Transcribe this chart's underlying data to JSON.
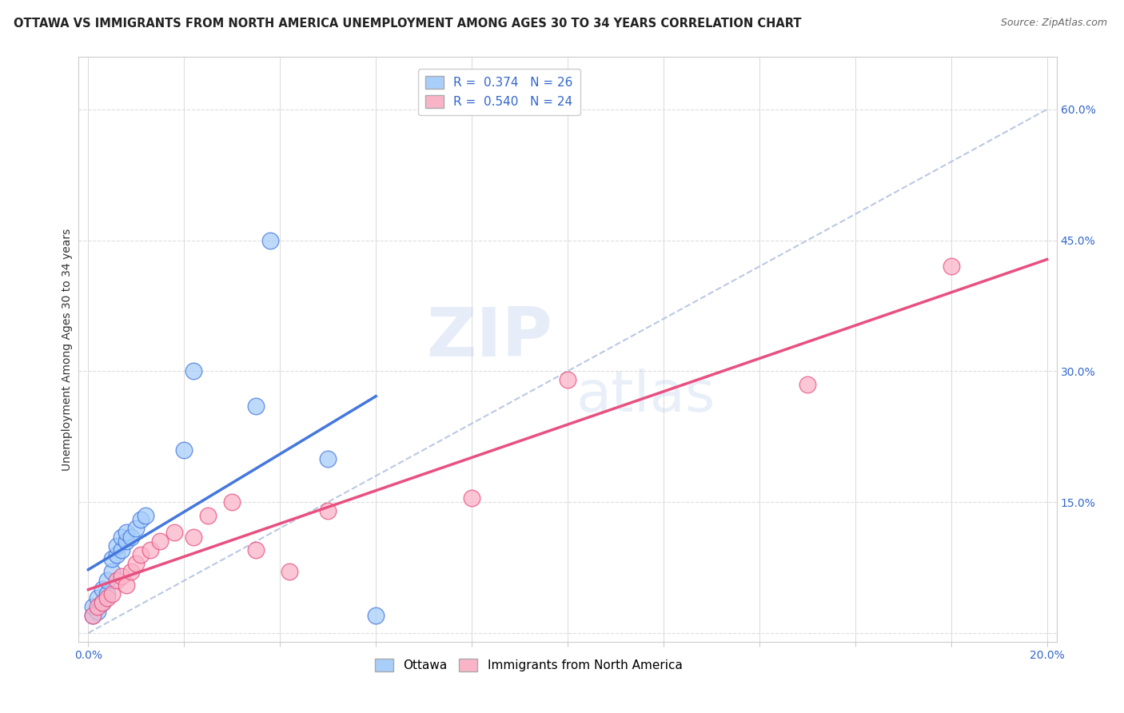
{
  "title": "OTTAWA VS IMMIGRANTS FROM NORTH AMERICA UNEMPLOYMENT AMONG AGES 30 TO 34 YEARS CORRELATION CHART",
  "source": "Source: ZipAtlas.com",
  "xlabel": "",
  "ylabel": "Unemployment Among Ages 30 to 34 years",
  "xlim": [
    -0.002,
    0.202
  ],
  "ylim": [
    -0.01,
    0.66
  ],
  "R_ottawa": 0.374,
  "N_ottawa": 26,
  "R_immigrants": 0.54,
  "N_immigrants": 24,
  "ottawa_color": "#A8CEFA",
  "immigrants_color": "#FAB4C8",
  "ottawa_line_color": "#4477DD",
  "immigrants_line_color": "#E85080",
  "background_color": "#FFFFFF",
  "grid_color": "#DDDDDD",
  "ottawa_x": [
    0.001,
    0.001,
    0.002,
    0.002,
    0.003,
    0.003,
    0.004,
    0.004,
    0.005,
    0.005,
    0.006,
    0.006,
    0.007,
    0.007,
    0.008,
    0.008,
    0.009,
    0.01,
    0.011,
    0.012,
    0.02,
    0.022,
    0.035,
    0.038,
    0.05,
    0.06
  ],
  "ottawa_y": [
    0.02,
    0.03,
    0.025,
    0.04,
    0.035,
    0.05,
    0.045,
    0.06,
    0.07,
    0.085,
    0.09,
    0.1,
    0.095,
    0.11,
    0.105,
    0.115,
    0.11,
    0.12,
    0.13,
    0.135,
    0.21,
    0.3,
    0.26,
    0.45,
    0.2,
    0.02
  ],
  "immigrants_x": [
    0.001,
    0.002,
    0.003,
    0.004,
    0.005,
    0.006,
    0.007,
    0.008,
    0.009,
    0.01,
    0.011,
    0.013,
    0.015,
    0.018,
    0.022,
    0.025,
    0.03,
    0.035,
    0.042,
    0.05,
    0.08,
    0.1,
    0.15,
    0.18
  ],
  "immigrants_y": [
    0.02,
    0.03,
    0.035,
    0.04,
    0.045,
    0.06,
    0.065,
    0.055,
    0.07,
    0.08,
    0.09,
    0.095,
    0.105,
    0.115,
    0.11,
    0.135,
    0.15,
    0.095,
    0.07,
    0.14,
    0.155,
    0.29,
    0.285,
    0.42
  ],
  "title_fontsize": 10.5,
  "axis_label_fontsize": 10,
  "tick_fontsize": 10,
  "legend_fontsize": 11
}
